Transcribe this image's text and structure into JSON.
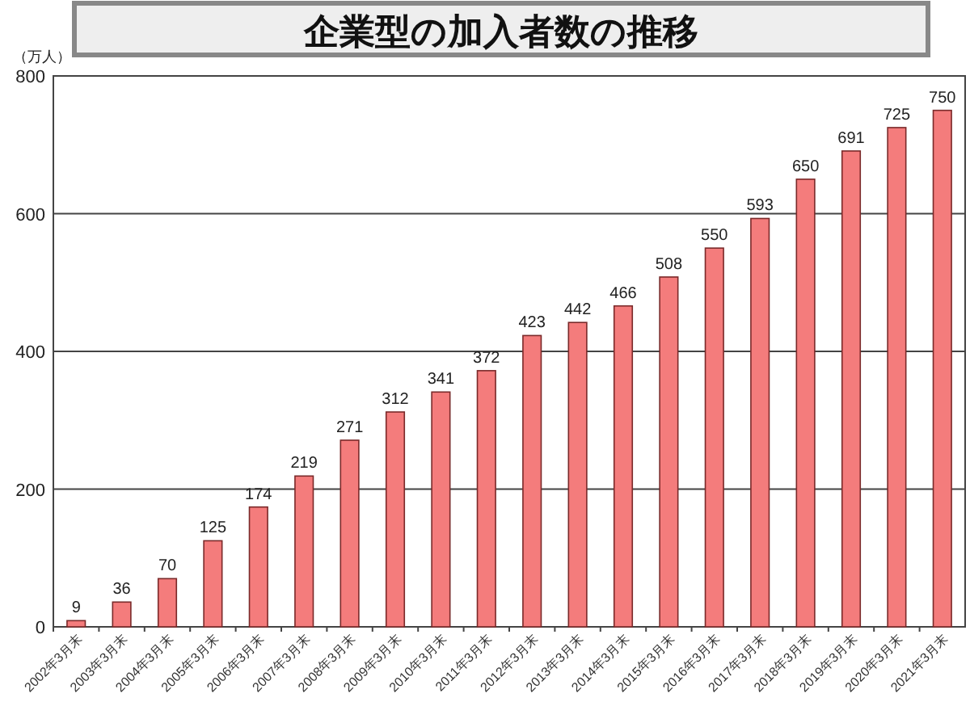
{
  "chart_data": {
    "type": "bar",
    "title": "企業型の加入者数の推移",
    "ylabel": "（万人）",
    "categories": [
      "2002年3月末",
      "2003年3月末",
      "2004年3月末",
      "2005年3月末",
      "2006年3月末",
      "2007年3月末",
      "2008年3月末",
      "2009年3月末",
      "2010年3月末",
      "2011年3月末",
      "2012年3月末",
      "2013年3月末",
      "2014年3月末",
      "2015年3月末",
      "2016年3月末",
      "2017年3月末",
      "2018年3月末",
      "2019年3月末",
      "2020年3月末",
      "2021年3月末"
    ],
    "values": [
      9,
      36,
      70,
      125,
      174,
      219,
      271,
      312,
      341,
      372,
      423,
      442,
      466,
      508,
      550,
      593,
      650,
      691,
      725,
      750
    ],
    "color": "#f47c7c",
    "ylim": [
      0,
      800
    ],
    "yticks": [
      0,
      200,
      400,
      600,
      800
    ],
    "grid": "y",
    "data_labels": true
  }
}
